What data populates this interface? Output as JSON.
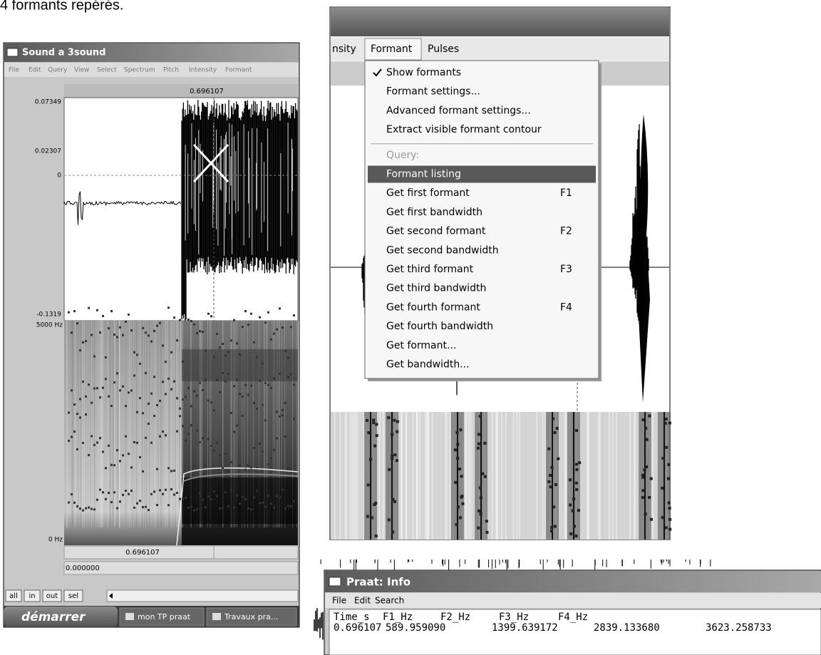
{
  "caption": "4 formants repérés.",
  "sound_window": {
    "title": "Sound a 3sound",
    "menu": [
      "File",
      "Edit",
      "Query",
      "View",
      "Select",
      "Spectrum",
      "Pitch",
      "Intensity",
      "Formant"
    ],
    "cursor_time": "0.696107",
    "amplitude_labels": [
      "0.07349",
      "0.02307",
      "0",
      "-0.1319"
    ],
    "frequency_labels": [
      "5000 Hz",
      "0 Hz"
    ],
    "time_labels": [
      "0.696107",
      "0.000000"
    ],
    "buttons": [
      "all",
      "in",
      "out",
      "sel"
    ]
  },
  "taskbar": {
    "start": "démarrer",
    "tasks": [
      "mon TP praat",
      "Travaux pra..."
    ]
  },
  "formant_window": {
    "menubar": [
      "nsity",
      "Formant",
      "Pulses"
    ],
    "items": [
      {
        "label": "Show formants",
        "checked": true
      },
      {
        "label": "Formant settings..."
      },
      {
        "label": "Advanced formant settings..."
      },
      {
        "label": "Extract visible formant contour",
        "separator_after": true
      },
      {
        "label": "Query:",
        "disabled": true
      },
      {
        "label": "Formant listing",
        "highlighted": true
      },
      {
        "label": "Get first formant",
        "shortcut": "F1"
      },
      {
        "label": "Get first bandwidth"
      },
      {
        "label": "Get second formant",
        "shortcut": "F2"
      },
      {
        "label": "Get second bandwidth"
      },
      {
        "label": "Get third formant",
        "shortcut": "F3"
      },
      {
        "label": "Get third bandwidth"
      },
      {
        "label": "Get fourth formant",
        "shortcut": "F4"
      },
      {
        "label": "Get fourth bandwidth"
      },
      {
        "label": "Get formant..."
      },
      {
        "label": "Get bandwidth..."
      }
    ]
  },
  "info_window": {
    "title": "Praat: Info",
    "menu": [
      "File",
      "Edit",
      "Search"
    ],
    "header": [
      "Time_s",
      "F1_Hz",
      "F2_Hz",
      "F3_Hz",
      "F4_Hz"
    ],
    "row": [
      "0.696107",
      "589.959090",
      "1399.639172",
      "2839.133680",
      "3623.258733"
    ]
  }
}
